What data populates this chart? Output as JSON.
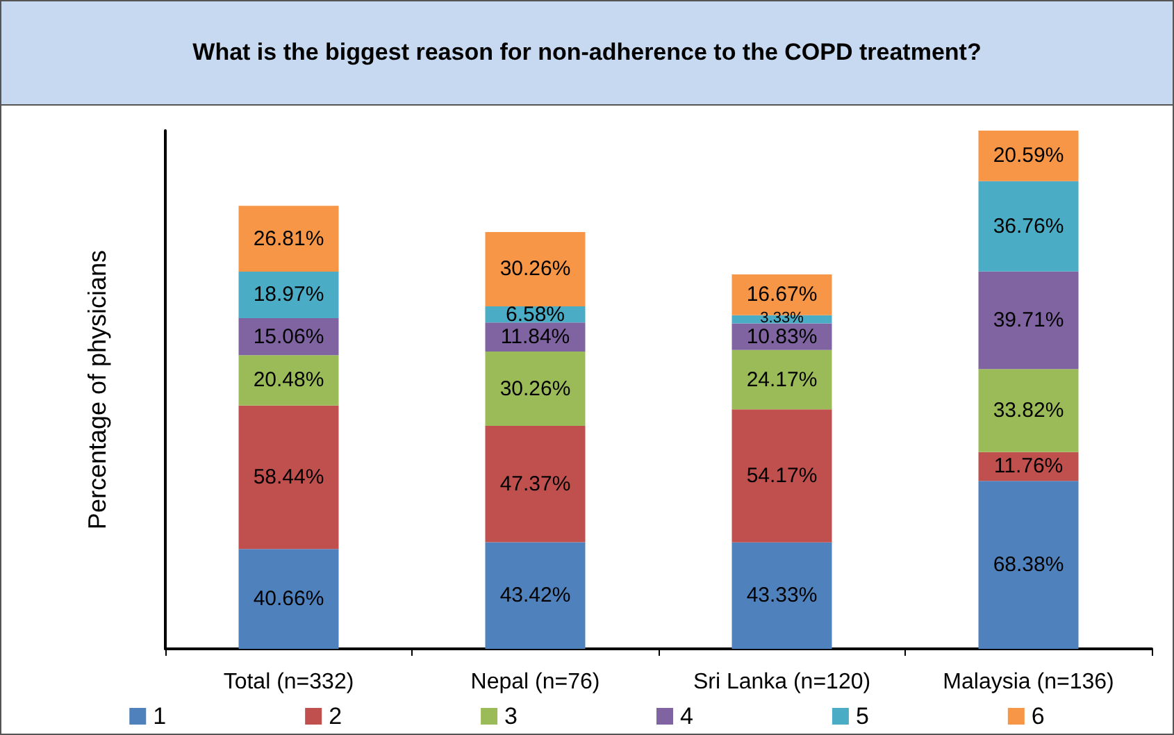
{
  "chart_data": {
    "type": "bar",
    "stacked": true,
    "title": "What is the biggest reason for non-adherence to the COPD treatment?",
    "ylabel": "Percentage of physicians",
    "categories": [
      "Total (n=332)",
      "Nepal (n=76)",
      "Sri Lanka (n=120)",
      "Malaysia (n=136)"
    ],
    "legend": "bottom",
    "grid": false,
    "tick_labels": "x",
    "series": [
      {
        "name": "1",
        "color": "#4f81bd",
        "values": [
          40.66,
          43.42,
          43.33,
          68.38
        ],
        "value_labels": [
          "40.66%",
          "43.42%",
          "43.33%",
          "68.38%"
        ]
      },
      {
        "name": "2",
        "color": "#c0504d",
        "values": [
          58.44,
          47.37,
          54.17,
          11.76
        ],
        "value_labels": [
          "58.44%",
          "47.37%",
          "54.17%",
          "11.76%"
        ]
      },
      {
        "name": "3",
        "color": "#9bbb59",
        "values": [
          20.48,
          30.26,
          24.17,
          33.82
        ],
        "value_labels": [
          "20.48%",
          "30.26%",
          "24.17%",
          "33.82%"
        ]
      },
      {
        "name": "4",
        "color": "#8064a2",
        "values": [
          15.06,
          11.84,
          10.83,
          39.71
        ],
        "value_labels": [
          "15.06%",
          "11.84%",
          "10.83%",
          "39.71%"
        ]
      },
      {
        "name": "5",
        "color": "#4bacc6",
        "values": [
          18.97,
          6.58,
          3.33,
          36.76
        ],
        "value_labels": [
          "18.97%",
          "6.58%",
          "3.33%",
          "36.76%"
        ]
      },
      {
        "name": "6",
        "color": "#f79646",
        "values": [
          26.81,
          30.26,
          16.67,
          20.59
        ],
        "value_labels": [
          "26.81%",
          "30.26%",
          "16.67%",
          "20.59%"
        ]
      }
    ]
  }
}
